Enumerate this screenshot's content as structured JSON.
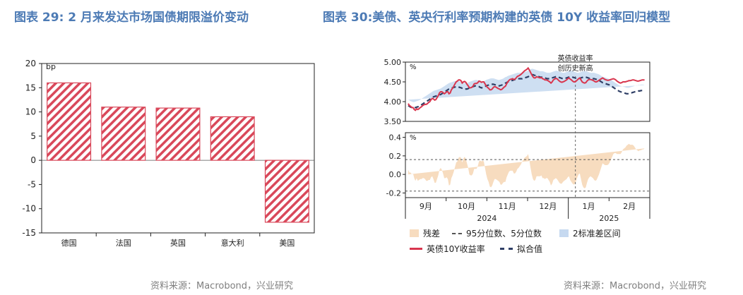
{
  "left_title": "图表 29:  2 月来发达市场国债期限溢价变动",
  "right_title": "图表 30:美债、英央行利率预期构建的英债 10Y 收益率回归模型",
  "left_source": "资料来源：Macrobond，兴业研究",
  "right_source": "资料来源：Macrobond，兴业研究",
  "colors": {
    "title": "#4d7bb5",
    "hatch": "#d9485a",
    "actual_line": "#d9364e",
    "fitted_line": "#2f3f66",
    "band": "#c6d9f0",
    "residual": "#f7dcbf",
    "guide": "#555555"
  },
  "chart_data": [
    {
      "type": "bar",
      "ylabel": "bp",
      "categories": [
        "德国",
        "法国",
        "英国",
        "意大利",
        "美国"
      ],
      "values": [
        16.0,
        11.0,
        10.8,
        9.0,
        -12.8
      ],
      "ylim": [
        -15,
        20
      ],
      "yticks": [
        -15,
        -10,
        -5,
        0,
        5,
        10,
        15,
        20
      ],
      "bar_style": "red diagonal hatch"
    },
    {
      "type": "line",
      "top_panel": {
        "ylabel": "%",
        "ylim": [
          3.5,
          5.0
        ],
        "yticks": [
          "3.50",
          "4.00",
          "4.50",
          "5.00"
        ],
        "x": [
          0,
          1,
          2,
          3,
          4,
          5,
          6,
          7,
          8,
          9,
          10,
          11,
          12,
          13,
          14,
          15,
          16,
          17,
          18,
          19,
          20,
          21,
          22,
          23,
          24,
          25,
          26,
          27,
          28,
          29,
          30,
          31,
          32,
          33,
          34,
          35,
          36,
          37,
          38,
          39,
          40,
          41,
          42,
          43,
          44,
          45,
          46,
          47,
          48,
          49,
          50,
          51,
          52,
          53,
          54,
          55,
          56,
          57,
          58,
          59,
          60,
          61,
          62,
          63,
          64,
          65,
          66,
          67,
          68,
          69,
          70,
          71,
          72,
          73,
          74,
          75,
          76,
          77,
          78,
          79,
          80,
          81,
          82,
          83,
          84,
          85,
          86,
          87,
          88,
          89,
          90,
          91,
          92,
          93,
          94,
          95,
          96,
          97,
          98,
          99,
          100,
          101,
          102,
          103,
          104,
          105,
          106,
          107,
          108,
          109,
          110,
          111,
          112,
          113,
          114,
          115,
          116,
          117,
          118,
          119,
          120,
          121,
          122,
          123,
          124,
          125,
          126,
          127,
          128,
          129,
          130,
          131,
          132,
          133,
          134,
          135,
          136,
          137,
          138,
          139,
          140,
          141,
          142,
          143,
          144,
          145,
          146,
          147,
          148,
          149,
          150,
          151,
          152,
          153,
          154,
          155,
          156,
          157,
          158,
          159,
          160,
          161,
          162,
          163,
          164,
          165,
          166,
          167,
          168,
          169,
          170,
          171,
          172,
          173,
          174,
          175,
          176,
          177,
          178,
          179,
          180,
          181,
          182,
          183,
          184,
          185,
          186,
          187,
          188,
          189,
          190,
          191,
          192,
          193,
          194,
          195,
          196,
          197,
          198,
          199
        ],
        "series": [
          {
            "name": "英债10Y收益率",
            "values": [
              3.95,
              3.9,
              3.88,
              3.85,
              3.85,
              3.8,
              3.78,
              3.82,
              3.8,
              3.82,
              3.85,
              3.87,
              3.9,
              3.92,
              3.93,
              3.93,
              3.95,
              3.98,
              4.0,
              4.05,
              4.08,
              4.07,
              4.04,
              4.05,
              4.1,
              4.15,
              4.22,
              4.25,
              4.25,
              4.23,
              4.2,
              4.22,
              4.25,
              4.25,
              4.2,
              4.22,
              4.3,
              4.34,
              4.39,
              4.45,
              4.5,
              4.52,
              4.55,
              4.55,
              4.53,
              4.47,
              4.5,
              4.51,
              4.49,
              4.44,
              4.4,
              4.35,
              4.35,
              4.36,
              4.39,
              4.45,
              4.46,
              4.46,
              4.48,
              4.52,
              4.51,
              4.49,
              4.5,
              4.5,
              4.45,
              4.4,
              4.36,
              4.34,
              4.3,
              4.3,
              4.32,
              4.36,
              4.38,
              4.37,
              4.35,
              4.33,
              4.32,
              4.3,
              4.31,
              4.34,
              4.37,
              4.39,
              4.45,
              4.5,
              4.54,
              4.56,
              4.57,
              4.58,
              4.56,
              4.57,
              4.6,
              4.64,
              4.65,
              4.67,
              4.69,
              4.72,
              4.75,
              4.78,
              4.8,
              4.82,
              4.85,
              4.8,
              4.74,
              4.68,
              4.63,
              4.6,
              4.6,
              4.63,
              4.62,
              4.61,
              4.6,
              4.61,
              4.58,
              4.57,
              4.55,
              4.55,
              4.54,
              4.52,
              4.5,
              4.47,
              4.5,
              4.55,
              4.57,
              4.59,
              4.58,
              4.55,
              4.52,
              4.5,
              4.49,
              4.5,
              4.51,
              4.53,
              4.55,
              4.58,
              4.6,
              4.57,
              4.55,
              4.52,
              4.5,
              4.5,
              4.52,
              4.55,
              4.58,
              4.6,
              4.55,
              4.5,
              4.48,
              4.47,
              4.48,
              4.52,
              4.55,
              4.56,
              4.56,
              4.55,
              4.54,
              4.52,
              4.5,
              4.5,
              4.52,
              4.54,
              4.56,
              4.58,
              4.6,
              4.58,
              4.56,
              4.55,
              4.54,
              4.54,
              4.55,
              4.56,
              4.57,
              4.58,
              4.57,
              4.55,
              4.52,
              4.5,
              4.48,
              4.47,
              4.48,
              4.5,
              4.5,
              4.5,
              4.51,
              4.52,
              4.53,
              4.53,
              4.54,
              4.55,
              4.55,
              4.54,
              4.53,
              4.52,
              4.52,
              4.53,
              4.54,
              4.55,
              4.55,
              4.55
            ]
          },
          {
            "name": "拟合值",
            "values": [
              3.9,
              3.88,
              3.86,
              3.85,
              3.84,
              3.84,
              3.85,
              3.86,
              3.87,
              3.88,
              3.9,
              3.92,
              3.94,
              3.96,
              3.98,
              4.0,
              4.02,
              4.04,
              4.06,
              4.08,
              4.1,
              4.12,
              4.13,
              4.14,
              4.15,
              4.16,
              4.17,
              4.18,
              4.2,
              4.22,
              4.24,
              4.26,
              4.28,
              4.3,
              4.32,
              4.33,
              4.34,
              4.35,
              4.36,
              4.37,
              4.37,
              4.38,
              4.37,
              4.36,
              4.35,
              4.34,
              4.33,
              4.32,
              4.32,
              4.32,
              4.33,
              4.35,
              4.36,
              4.37,
              4.38,
              4.39,
              4.4,
              4.4,
              4.39,
              4.38,
              4.36,
              4.35,
              4.35,
              4.36,
              4.38,
              4.4,
              4.41,
              4.42,
              4.43,
              4.44,
              4.44,
              4.44,
              4.43,
              4.42,
              4.41,
              4.4,
              4.4,
              4.41,
              4.42,
              4.43,
              4.45,
              4.47,
              4.48,
              4.5,
              4.51,
              4.52,
              4.53,
              4.54,
              4.55,
              4.56,
              4.57,
              4.58,
              4.58,
              4.58,
              4.58,
              4.58,
              4.59,
              4.6,
              4.61,
              4.62,
              4.63,
              4.65,
              4.67,
              4.68,
              4.68,
              4.67,
              4.66,
              4.65,
              4.64,
              4.63,
              4.62,
              4.62,
              4.62,
              4.61,
              4.6,
              4.59,
              4.58,
              4.58,
              4.58,
              4.59,
              4.6,
              4.61,
              4.62,
              4.63,
              4.63,
              4.62,
              4.61,
              4.6,
              4.59,
              4.58,
              4.58,
              4.59,
              4.6,
              4.61,
              4.62,
              4.63,
              4.63,
              4.62,
              4.61,
              4.6,
              4.59,
              4.58,
              4.58,
              4.59,
              4.6,
              4.61,
              4.62,
              4.62,
              4.62,
              4.61,
              4.6,
              4.59,
              4.58,
              4.58,
              4.58,
              4.58,
              4.57,
              4.56,
              4.55,
              4.54,
              4.52,
              4.5,
              4.48,
              4.47,
              4.46,
              4.45,
              4.44,
              4.43,
              4.42,
              4.4,
              4.38,
              4.36,
              4.34,
              4.32,
              4.3,
              4.28,
              4.26,
              4.25,
              4.24,
              4.23,
              4.22,
              4.21,
              4.2,
              4.2,
              4.2,
              4.21,
              4.22,
              4.23,
              4.24,
              4.25,
              4.26,
              4.26,
              4.27,
              4.27,
              4.28,
              4.28,
              4.28,
              4.27
            ]
          },
          {
            "name": "2标准差区间",
            "kind": "band",
            "half_width": 0.15
          }
        ]
      },
      "bottom_panel": {
        "ylabel": "%",
        "ylim": [
          -0.25,
          0.45
        ],
        "yticks": [
          "-0.2",
          "0.0",
          "0.2",
          "0.4"
        ],
        "percentile_95": 0.16,
        "percentile_5": -0.18,
        "residual_name": "残差",
        "percentile_name": "95分位数、5分位数"
      },
      "x_month_labels": [
        "9月",
        "10月",
        "11月",
        "12月",
        "1月",
        "2月"
      ],
      "x_year_labels": [
        "2024",
        "2025"
      ],
      "annotation": [
        "英债收益率",
        "创历史新高"
      ]
    }
  ]
}
